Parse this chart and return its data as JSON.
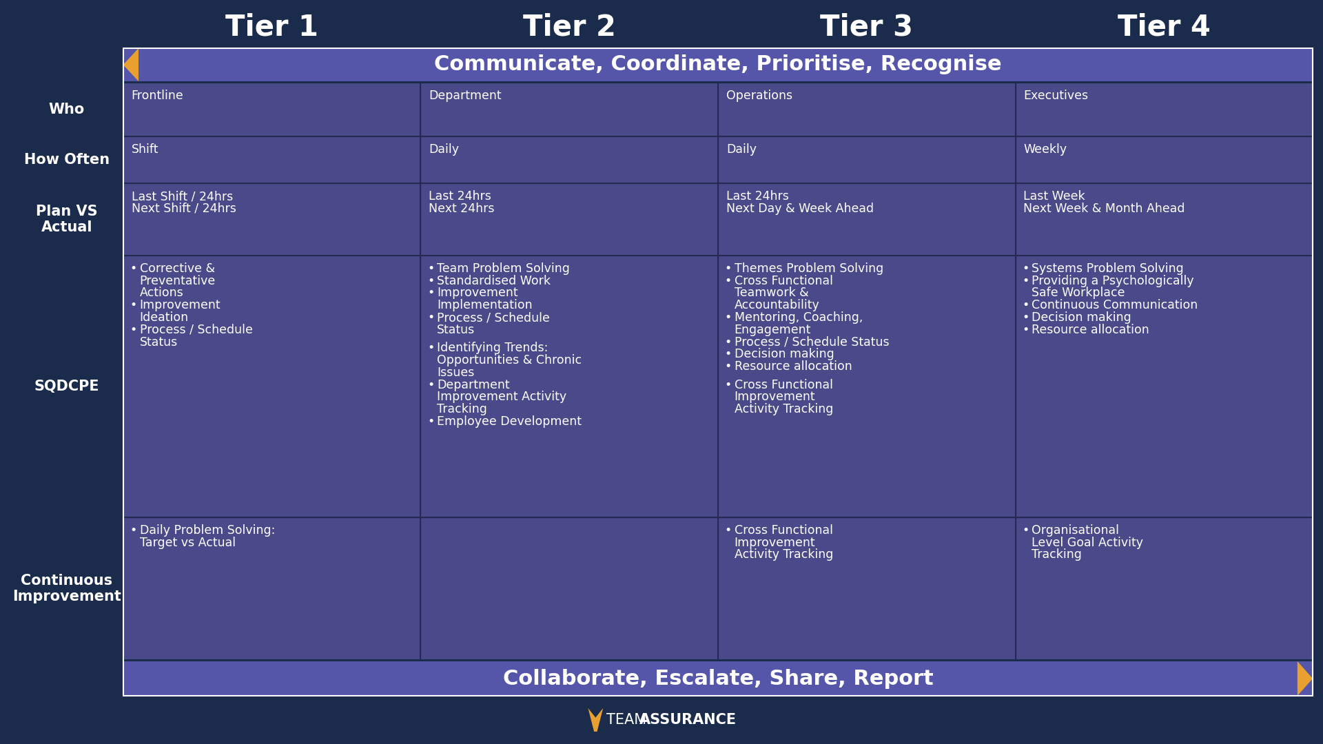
{
  "bg_color": "#1b2b4b",
  "header_bg": "#5555aa",
  "cell_bg": "#4a4a8a",
  "tier_titles": [
    "Tier 1",
    "Tier 2",
    "Tier 3",
    "Tier 4"
  ],
  "row_labels": [
    "Who",
    "How Often",
    "Plan VS\nActual",
    "SQDCPE",
    "Continuous\nImprovement"
  ],
  "top_banner": "Communicate, Coordinate, Prioritise, Recognise",
  "bottom_banner": "Collaborate, Escalate, Share, Report",
  "arrow_color": "#e8a030",
  "tier_title_color": "#ffffff",
  "tier_title_fontsize": 30,
  "row_label_color": "#ffffff",
  "row_label_fontsize": 15,
  "cell_text_color": "#ffffff",
  "cell_text_fontsize": 12.5,
  "banner_text_color": "#ffffff",
  "banner_fontsize": 22,
  "columns": {
    "tier1": {
      "who": "Frontline",
      "how_often": "Shift",
      "plan_actual": "Last Shift / 24hrs\nNext Shift / 24hrs",
      "sqdcpe_group1": [
        "Corrective &\nPreventative\nActions",
        "Improvement\nIdeation",
        "Process / Schedule\nStatus"
      ],
      "sqdcpe_group2": [],
      "continuous": [
        "Daily Problem Solving:\nTarget vs Actual"
      ]
    },
    "tier2": {
      "who": "Department",
      "how_often": "Daily",
      "plan_actual": "Last 24hrs\nNext 24hrs",
      "sqdcpe_group1": [
        "Team Problem Solving",
        "Standardised Work",
        "Improvement\nImplementation",
        "Process / Schedule\nStatus"
      ],
      "sqdcpe_group2": [
        "Identifying Trends:\nOpportunities & Chronic\nIssues",
        "Department\nImprovement Activity\nTracking",
        "Employee Development"
      ],
      "continuous": []
    },
    "tier3": {
      "who": "Operations",
      "how_often": "Daily",
      "plan_actual": "Last 24hrs\nNext Day & Week Ahead",
      "sqdcpe_group1": [
        "Themes Problem Solving",
        "Cross Functional\nTeamwork &\nAccountability",
        "Mentoring, Coaching,\nEngagement",
        "Process / Schedule Status",
        "Decision making",
        "Resource allocation"
      ],
      "sqdcpe_group2": [
        "Cross Functional\nImprovement\nActivity Tracking"
      ],
      "continuous": [
        "Cross Functional\nImprovement\nActivity Tracking"
      ]
    },
    "tier4": {
      "who": "Executives",
      "how_often": "Weekly",
      "plan_actual": "Last Week\nNext Week & Month Ahead",
      "sqdcpe_group1": [
        "Systems Problem Solving",
        "Providing a Psychologically\nSafe Workplace",
        "Continuous Communication",
        "Decision making",
        "Resource allocation"
      ],
      "sqdcpe_group2": [],
      "continuous": [
        "Organisational\nLevel Goal Activity\nTracking"
      ]
    }
  }
}
